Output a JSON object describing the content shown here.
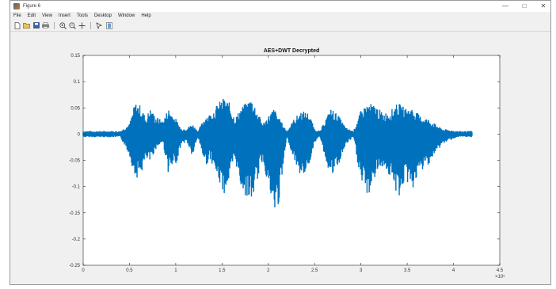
{
  "window": {
    "title": "Figure 6"
  },
  "window_controls": {
    "minimize": "—",
    "maximize": "□",
    "close": "✕"
  },
  "menu": [
    "File",
    "Edit",
    "View",
    "Insert",
    "Tools",
    "Desktop",
    "Window",
    "Help"
  ],
  "toolbar": [
    "new-file-icon",
    "open-folder-icon",
    "save-icon",
    "print-icon",
    "zoom-in-icon",
    "zoom-out-icon",
    "pan-icon",
    "data-cursor-icon",
    "insert-colorbar-icon"
  ],
  "colors": {
    "waveform": "#0072bd",
    "axes_bg": "#ffffff",
    "figure_bg": "#f0f0f0"
  },
  "chart_data": {
    "type": "line",
    "title": "AES+DWT Decrypted",
    "xlabel": "",
    "ylabel": "",
    "xlim": [
      0,
      450000
    ],
    "ylim": [
      -0.25,
      0.15
    ],
    "xticks": [
      0,
      50000,
      100000,
      150000,
      200000,
      250000,
      300000,
      350000,
      400000,
      450000
    ],
    "xtick_labels": [
      "0",
      "0.5",
      "1",
      "1.5",
      "2",
      "2.5",
      "3",
      "3.5",
      "4",
      "4.5"
    ],
    "x_exponent_label": "×10⁵",
    "yticks": [
      0.15,
      0.1,
      0.05,
      0,
      -0.05,
      -0.1,
      -0.15,
      -0.2,
      -0.25
    ],
    "ytick_labels": [
      "0.15",
      "0.1",
      "0.05",
      "0",
      "-0.05",
      "-0.1",
      "-0.15",
      "-0.2",
      "-0.25"
    ],
    "grid": false,
    "series": [
      {
        "envelope_x": [
          0,
          40000,
          50000,
          56000,
          62000,
          68000,
          72000,
          78000,
          86000,
          92000,
          100000,
          106000,
          112000,
          118000,
          124000,
          132000,
          138000,
          146000,
          152000,
          158000,
          164000,
          170000,
          176000,
          182000,
          188000,
          194000,
          200000,
          206000,
          212000,
          220000,
          228000,
          236000,
          244000,
          250000,
          256000,
          262000,
          268000,
          276000,
          284000,
          292000,
          300000,
          308000,
          316000,
          324000,
          332000,
          340000,
          348000,
          356000,
          364000,
          372000,
          380000,
          388000,
          396000,
          404000,
          412000,
          420000,
          450000
        ],
        "upper": [
          0.006,
          0.006,
          0.02,
          0.06,
          0.055,
          0.03,
          0.05,
          0.035,
          0.025,
          0.05,
          0.03,
          0.01,
          0.012,
          0.02,
          0.006,
          0.035,
          0.04,
          0.06,
          0.07,
          0.06,
          0.03,
          0.05,
          0.06,
          0.07,
          0.045,
          0.02,
          0.035,
          0.05,
          0.03,
          0.006,
          0.03,
          0.045,
          0.04,
          0.01,
          0.006,
          0.03,
          0.05,
          0.035,
          0.012,
          0.006,
          0.045,
          0.06,
          0.055,
          0.04,
          0.045,
          0.06,
          0.05,
          0.05,
          0.035,
          0.03,
          0.02,
          0.01,
          0.008,
          0.006,
          0.006,
          0.006,
          0.006
        ],
        "lower": [
          -0.006,
          -0.006,
          -0.04,
          -0.085,
          -0.08,
          -0.05,
          -0.055,
          -0.03,
          -0.015,
          -0.075,
          -0.06,
          -0.02,
          -0.015,
          -0.045,
          -0.006,
          -0.06,
          -0.05,
          -0.09,
          -0.115,
          -0.09,
          -0.05,
          -0.1,
          -0.12,
          -0.13,
          -0.09,
          -0.05,
          -0.1,
          -0.16,
          -0.13,
          -0.006,
          -0.05,
          -0.085,
          -0.06,
          -0.015,
          -0.006,
          -0.05,
          -0.085,
          -0.06,
          -0.02,
          -0.006,
          -0.095,
          -0.12,
          -0.08,
          -0.06,
          -0.085,
          -0.125,
          -0.09,
          -0.105,
          -0.075,
          -0.06,
          -0.04,
          -0.02,
          -0.012,
          -0.006,
          -0.006,
          -0.006,
          -0.006
        ]
      }
    ]
  }
}
